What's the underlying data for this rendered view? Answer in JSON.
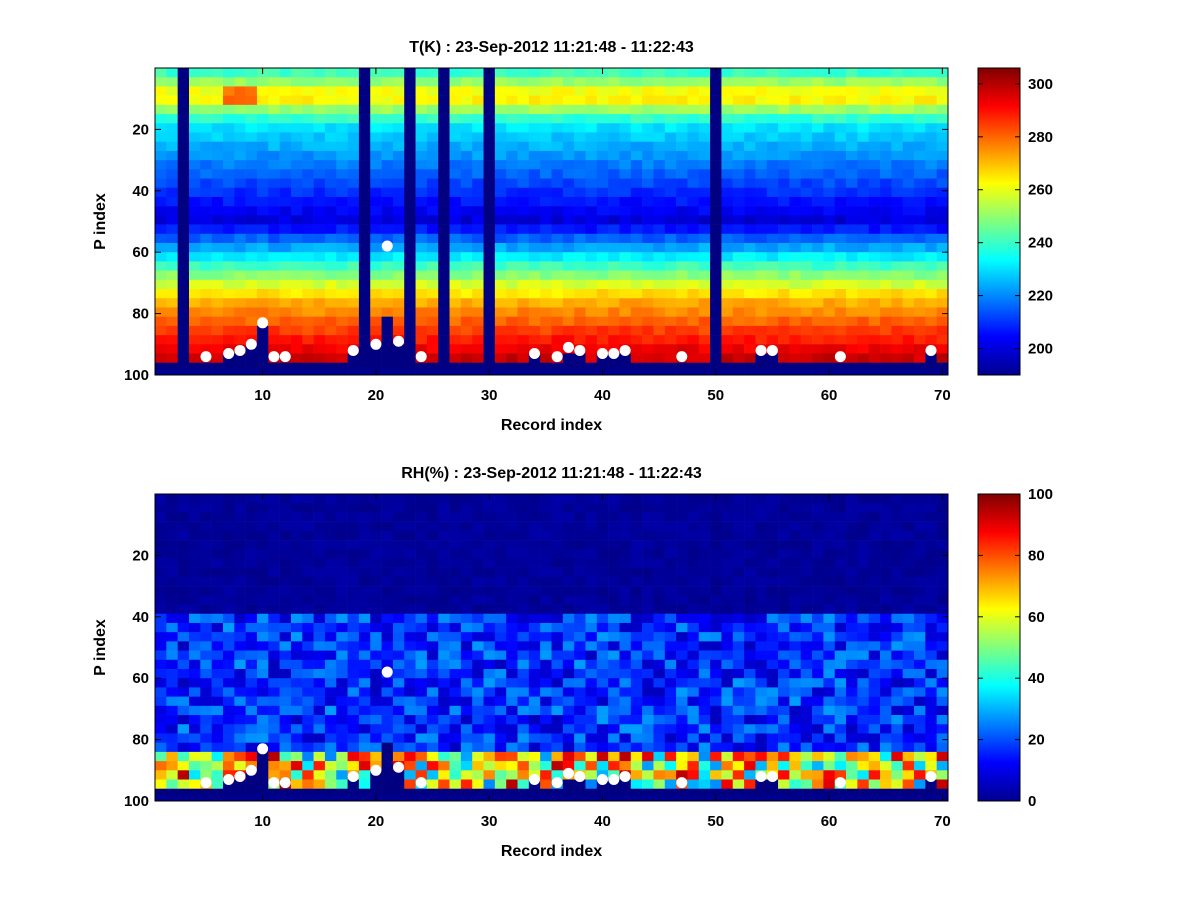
{
  "chart_data": [
    {
      "type": "heatmap",
      "title": "T(K) : 23-Sep-2012 11:21:48 - 11:22:43",
      "xlabel": "Record index",
      "ylabel": "P index",
      "xlim": [
        1,
        70
      ],
      "ylim": [
        0,
        100
      ],
      "y_reversed": true,
      "xticks": [
        10,
        20,
        30,
        40,
        50,
        60,
        70
      ],
      "yticks": [
        20,
        40,
        60,
        80,
        100
      ],
      "colorbar": {
        "range": [
          190,
          306
        ],
        "ticks": [
          200,
          220,
          240,
          260,
          280,
          300
        ]
      },
      "colormap": "jet",
      "profile_columns": [
        {
          "x": [
            3
          ],
          "value": 190
        },
        {
          "x": [
            19
          ],
          "value": 190
        },
        {
          "x": [
            23
          ],
          "value": 190
        },
        {
          "x": [
            26
          ],
          "value": 190
        },
        {
          "x": [
            30
          ],
          "value": 190
        },
        {
          "x": [
            50
          ],
          "value": 190
        }
      ],
      "surface_markers": [
        {
          "x": 5,
          "y": 94
        },
        {
          "x": 7,
          "y": 93
        },
        {
          "x": 8,
          "y": 92
        },
        {
          "x": 9,
          "y": 90
        },
        {
          "x": 10,
          "y": 83
        },
        {
          "x": 11,
          "y": 94
        },
        {
          "x": 12,
          "y": 94
        },
        {
          "x": 18,
          "y": 92
        },
        {
          "x": 20,
          "y": 90
        },
        {
          "x": 21,
          "y": 58
        },
        {
          "x": 22,
          "y": 89
        },
        {
          "x": 24,
          "y": 94
        },
        {
          "x": 34,
          "y": 93
        },
        {
          "x": 36,
          "y": 94
        },
        {
          "x": 37,
          "y": 91
        },
        {
          "x": 38,
          "y": 92
        },
        {
          "x": 40,
          "y": 93
        },
        {
          "x": 41,
          "y": 93
        },
        {
          "x": 42,
          "y": 92
        },
        {
          "x": 47,
          "y": 94
        },
        {
          "x": 54,
          "y": 92
        },
        {
          "x": 55,
          "y": 92
        },
        {
          "x": 61,
          "y": 94
        },
        {
          "x": 69,
          "y": 92
        }
      ]
    },
    {
      "type": "heatmap",
      "title": "RH(%) : 23-Sep-2012 11:21:48 - 11:22:43",
      "xlabel": "Record index",
      "ylabel": "P index",
      "xlim": [
        1,
        70
      ],
      "ylim": [
        0,
        100
      ],
      "y_reversed": true,
      "xticks": [
        10,
        20,
        30,
        40,
        50,
        60,
        70
      ],
      "yticks": [
        20,
        40,
        60,
        80,
        100
      ],
      "colorbar": {
        "range": [
          0,
          100
        ],
        "ticks": [
          0,
          20,
          40,
          60,
          80,
          100
        ]
      },
      "colormap": "jet",
      "surface_markers": [
        {
          "x": 5,
          "y": 94
        },
        {
          "x": 7,
          "y": 93
        },
        {
          "x": 8,
          "y": 92
        },
        {
          "x": 9,
          "y": 90
        },
        {
          "x": 10,
          "y": 83
        },
        {
          "x": 11,
          "y": 94
        },
        {
          "x": 12,
          "y": 94
        },
        {
          "x": 18,
          "y": 92
        },
        {
          "x": 20,
          "y": 90
        },
        {
          "x": 21,
          "y": 58
        },
        {
          "x": 22,
          "y": 89
        },
        {
          "x": 24,
          "y": 94
        },
        {
          "x": 34,
          "y": 93
        },
        {
          "x": 36,
          "y": 94
        },
        {
          "x": 37,
          "y": 91
        },
        {
          "x": 38,
          "y": 92
        },
        {
          "x": 40,
          "y": 93
        },
        {
          "x": 41,
          "y": 93
        },
        {
          "x": 42,
          "y": 92
        },
        {
          "x": 47,
          "y": 94
        },
        {
          "x": 54,
          "y": 92
        },
        {
          "x": 55,
          "y": 92
        },
        {
          "x": 61,
          "y": 94
        },
        {
          "x": 69,
          "y": 92
        }
      ]
    }
  ]
}
